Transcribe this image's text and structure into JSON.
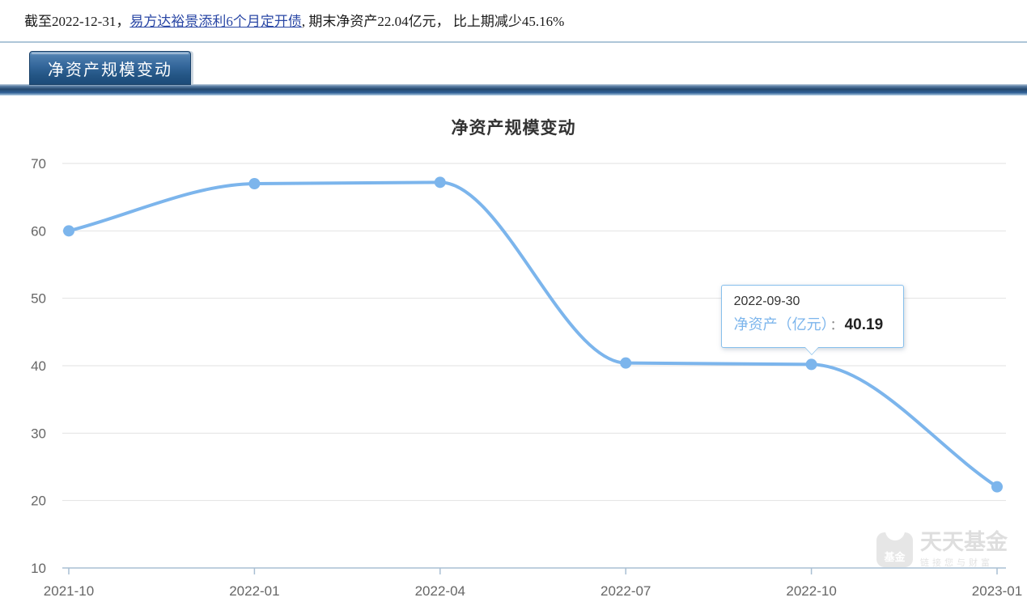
{
  "header": {
    "prefix": "截至2022-12-31，",
    "fund_link": "易方达裕景添利6个月定开债",
    "suffix": ", 期末净资产22.04亿元， 比上期减少45.16%"
  },
  "tab": {
    "label": "净资产规模变动"
  },
  "chart_data": {
    "type": "line",
    "title": "净资产规模变动",
    "series_name": "净资产（亿元）",
    "categories": [
      "2021-10",
      "2022-01",
      "2022-04",
      "2022-07",
      "2022-10",
      "2023-01"
    ],
    "values": [
      60.0,
      67.0,
      67.2,
      40.4,
      40.19,
      22.04
    ],
    "ylim": [
      10,
      70
    ],
    "y_ticks": [
      70,
      60,
      50,
      40,
      30,
      20,
      10
    ],
    "grid": true,
    "legend": "none",
    "line_color": "#7cb5ec",
    "grid_color": "#e2e2e2",
    "axis_color": "#a9bfd3",
    "label_color": "#666666",
    "tooltip": {
      "date": "2022-09-30",
      "label": "净资产（亿元）",
      "separator": "：",
      "value": "40.19",
      "point_index": 4
    }
  },
  "watermark": {
    "icon_text": "基金",
    "title": "天天基金",
    "subtitle": "链接您与财富"
  }
}
